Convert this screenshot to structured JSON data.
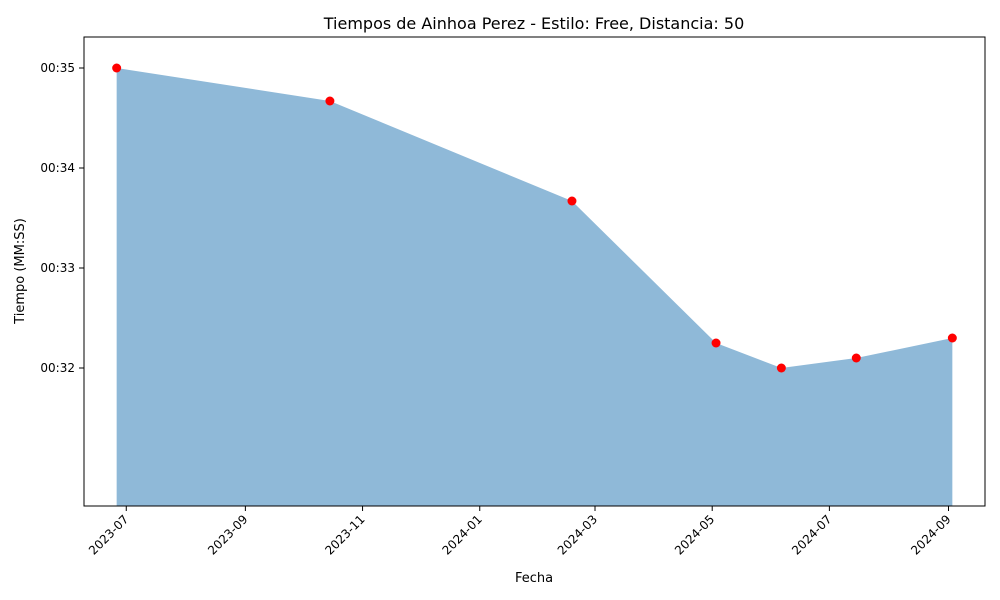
{
  "chart_data": {
    "type": "area",
    "title": "Tiempos de Ainhoa Perez - Estilo: Free, Distancia: 50",
    "xlabel": "Fecha",
    "ylabel": "Tiempo (MM:SS)",
    "x": [
      "2023-06-26",
      "2023-10-15",
      "2024-02-18",
      "2024-05-03",
      "2024-06-06",
      "2024-07-15",
      "2024-09-03"
    ],
    "y_seconds": [
      35.0,
      34.67,
      33.67,
      32.25,
      32.0,
      32.1,
      32.3
    ],
    "x_ticks": [
      "2023-07",
      "2023-09",
      "2023-11",
      "2024-01",
      "2024-03",
      "2024-05",
      "2024-07",
      "2024-09"
    ],
    "x_tick_dates": [
      "2023-07-01",
      "2023-09-01",
      "2023-11-01",
      "2024-01-01",
      "2024-03-01",
      "2024-05-01",
      "2024-07-01",
      "2024-09-01"
    ],
    "x_range": [
      "2023-06-09",
      "2024-09-20"
    ],
    "y_ticks": [
      "00:32",
      "00:33",
      "00:34",
      "00:35"
    ],
    "y_tick_values": [
      32,
      33,
      34,
      35
    ],
    "ylim": [
      30.62,
      35.31
    ],
    "grid": false,
    "colors": {
      "area": "#8fb9d8",
      "markers": "#ff0000"
    }
  }
}
